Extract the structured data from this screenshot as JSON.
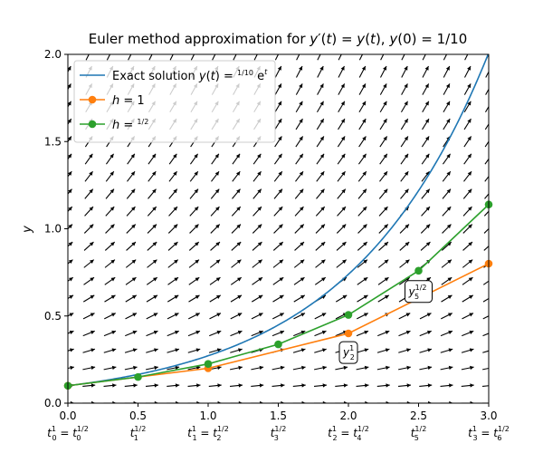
{
  "chart_data": {
    "type": "line",
    "title": "Euler method approximation for y′(t) = y(t), y(0) = 1/10",
    "xlabel": "",
    "ylabel": "y",
    "xlim": [
      0.0,
      3.0
    ],
    "ylim": [
      0.0,
      2.0
    ],
    "xticks": [
      0.0,
      0.5,
      1.0,
      1.5,
      2.0,
      2.5,
      3.0
    ],
    "xtick_labels": [
      "0.0",
      "0.5",
      "1.0",
      "1.5",
      "2.0",
      "2.5",
      "3.0"
    ],
    "xtick_sublabels": [
      {
        "a": "t",
        "asup": "1",
        "asub": "0",
        "b": "t",
        "bsup": "1/2",
        "bsub": "0"
      },
      {
        "a": "t",
        "asup": "1/2",
        "asub": "1"
      },
      {
        "a": "t",
        "asup": "1",
        "asub": "1",
        "b": "t",
        "bsup": "1/2",
        "bsub": "2"
      },
      {
        "a": "t",
        "asup": "1/2",
        "asub": "3"
      },
      {
        "a": "t",
        "asup": "1",
        "asub": "2",
        "b": "t",
        "bsup": "1/2",
        "bsub": "4"
      },
      {
        "a": "t",
        "asup": "1/2",
        "asub": "5"
      },
      {
        "a": "t",
        "asup": "1",
        "asub": "3",
        "b": "t",
        "bsup": "1/2",
        "bsub": "6"
      }
    ],
    "yticks": [
      0.0,
      0.5,
      1.0,
      1.5,
      2.0
    ],
    "ytick_labels": [
      "0.0",
      "0.5",
      "1.0",
      "1.5",
      "2.0"
    ],
    "series": [
      {
        "name": "Exact solution y(t) = (1/10)e^t",
        "color": "#1f77b4",
        "kind": "curve",
        "func": "0.1*exp(t)"
      },
      {
        "name": "h = 1",
        "color": "#ff7f0e",
        "kind": "markers",
        "x": [
          0,
          1,
          2,
          3
        ],
        "y": [
          0.1,
          0.2,
          0.4,
          0.8
        ]
      },
      {
        "name": "h = 1/2",
        "color": "#2ca02c",
        "kind": "markers",
        "x": [
          0,
          0.5,
          1.0,
          1.5,
          2.0,
          2.5,
          3.0
        ],
        "y": [
          0.1,
          0.15,
          0.225,
          0.3375,
          0.50625,
          0.759375,
          1.1390625
        ]
      }
    ],
    "legend": {
      "position": "top-left",
      "entries": [
        {
          "prefix": "Exact solution y(t) = ",
          "frac_num": "1",
          "frac_den": "10",
          "suffix": "e",
          "sup": "t"
        },
        {
          "prefix": "h = 1"
        },
        {
          "prefix": "h = ",
          "frac_num": "1",
          "frac_den": "2"
        }
      ]
    },
    "annotations": [
      {
        "base": "y",
        "sup": "1",
        "sub": "2",
        "x": 2.0,
        "y": 0.29
      },
      {
        "base": "y",
        "sup": "1/2",
        "sub": "5",
        "x": 2.5,
        "y": 0.64
      }
    ],
    "slope_field": {
      "equation": "y' = y",
      "x_step": 0.15,
      "y_step": 0.1,
      "color": "#000000"
    }
  }
}
